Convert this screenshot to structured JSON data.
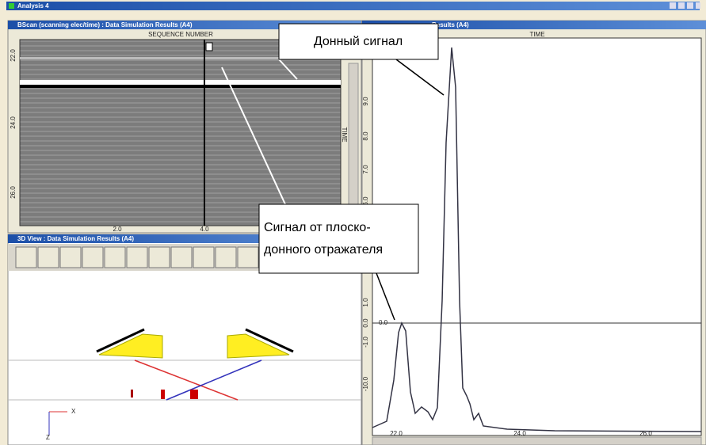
{
  "window": {
    "title": "Analysis 4"
  },
  "bscan": {
    "title": "BScan (scanning elec/time) : Data Simulation Results (A4)",
    "x_axis_label": "SEQUENCE NUMBER",
    "y_axis_label": "TIME",
    "y_ticks": [
      "22.0",
      "24.0",
      "26.0"
    ],
    "x_ticks": [
      "2.0",
      "4.0"
    ]
  },
  "view3d": {
    "title": "3D View : Data Simulation Results (A4)",
    "axis_x": "X",
    "axis_z": "Z"
  },
  "ascan": {
    "title": "Results (A4)",
    "x_axis_label": "TIME",
    "y_ticks": [
      "9.0",
      "8.0",
      "7.0",
      "6.0",
      "1.0",
      "0.0",
      "-1.0",
      "-10.0"
    ],
    "x_ticks": [
      "22.0",
      "24.0",
      "26.0"
    ],
    "cursor_label": "0.0"
  },
  "annotations": {
    "back_wall": "Донный сигнал",
    "fbh_line1": "Сигнал от плоско-",
    "fbh_line2": "донного отражателя"
  }
}
